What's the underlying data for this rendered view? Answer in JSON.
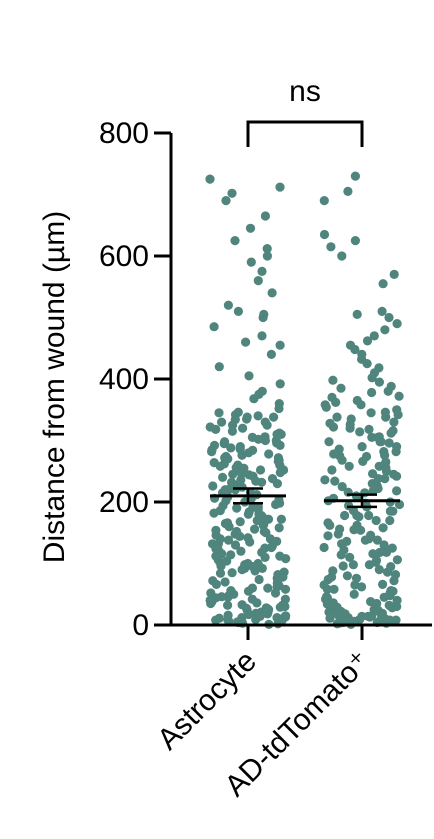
{
  "chart_data": {
    "type": "scatter",
    "ylabel": "Distance from wound (µm)",
    "xlabel": "",
    "ylim": [
      0,
      800
    ],
    "yticks": [
      0,
      200,
      400,
      600,
      800
    ],
    "categories": [
      "Astrocyte",
      "AD-tdTomato⁺"
    ],
    "dot_color": "#4f857d",
    "series": [
      {
        "category": "Astrocyte",
        "mean": 210,
        "sem": 12,
        "values": [
          725,
          712,
          702,
          690,
          665,
          645,
          625,
          612,
          600,
          590,
          575,
          560,
          540,
          520,
          510,
          505,
          500,
          485,
          470,
          460,
          455,
          440,
          420,
          405,
          392,
          380,
          375,
          368,
          360,
          352,
          346,
          342,
          338,
          334,
          330,
          325,
          320,
          315,
          310,
          305,
          300,
          296,
          292,
          288,
          284,
          280,
          276,
          272,
          268,
          264,
          260,
          256,
          252,
          248,
          244,
          240,
          236,
          232,
          228,
          224,
          220,
          216,
          212,
          208,
          204,
          200,
          196,
          192,
          188,
          184,
          180,
          176,
          172,
          168,
          164,
          160,
          156,
          152,
          148,
          144,
          140,
          136,
          132,
          128,
          124,
          120,
          116,
          112,
          108,
          104,
          100,
          96,
          92,
          88,
          84,
          80,
          76,
          72,
          68,
          64,
          60,
          56,
          52,
          48,
          44,
          40,
          36,
          32,
          28,
          24,
          20,
          16,
          12,
          8,
          4,
          2,
          345,
          338,
          322,
          312,
          302,
          292,
          282,
          272,
          262,
          252,
          242,
          232,
          222,
          212,
          202,
          192,
          182,
          172,
          162,
          152,
          142,
          132,
          122,
          112,
          102,
          92,
          82,
          72,
          62,
          52,
          42,
          32,
          22,
          12,
          6,
          330,
          310,
          290,
          270,
          250,
          230,
          210,
          190,
          170,
          150,
          130,
          110,
          90,
          70,
          50,
          30,
          15,
          340,
          300,
          260,
          220,
          180,
          140,
          100,
          60,
          25,
          10,
          335,
          295,
          255,
          215,
          175,
          135,
          95,
          55,
          18,
          5,
          325,
          285,
          245,
          205,
          165,
          125,
          85,
          45,
          14,
          3,
          318,
          278,
          238,
          198,
          158,
          118,
          78,
          38,
          26,
          9,
          306,
          266,
          226,
          186,
          146,
          106,
          66,
          35,
          19,
          7,
          298,
          258,
          218,
          178,
          138,
          98,
          58,
          33,
          21,
          1,
          286,
          246,
          206,
          166,
          126,
          86,
          46,
          29,
          17,
          11,
          274,
          234,
          194,
          154,
          114,
          74,
          42,
          27,
          13,
          8
        ]
      },
      {
        "category": "AD-tdTomato⁺",
        "mean": 202,
        "sem": 10,
        "values": [
          730,
          705,
          690,
          635,
          625,
          615,
          600,
          570,
          555,
          510,
          505,
          500,
          490,
          480,
          470,
          462,
          455,
          448,
          440,
          432,
          425,
          418,
          410,
          402,
          395,
          388,
          380,
          372,
          365,
          358,
          350,
          342,
          335,
          328,
          320,
          312,
          305,
          298,
          290,
          282,
          275,
          268,
          260,
          252,
          245,
          238,
          230,
          222,
          215,
          208,
          200,
          192,
          185,
          178,
          170,
          162,
          155,
          148,
          140,
          132,
          125,
          118,
          110,
          102,
          95,
          88,
          80,
          72,
          65,
          58,
          50,
          42,
          35,
          28,
          20,
          12,
          8,
          4,
          2,
          398,
          378,
          358,
          338,
          318,
          298,
          278,
          258,
          238,
          218,
          198,
          178,
          158,
          138,
          118,
          98,
          78,
          58,
          38,
          22,
          14,
          6,
          385,
          345,
          305,
          265,
          225,
          185,
          145,
          105,
          65,
          45,
          25,
          10,
          370,
          330,
          290,
          250,
          210,
          170,
          130,
          90,
          55,
          32,
          16,
          5,
          362,
          322,
          282,
          242,
          202,
          162,
          122,
          82,
          48,
          30,
          18,
          3,
          354,
          314,
          274,
          234,
          194,
          154,
          114,
          74,
          44,
          26,
          15,
          9,
          346,
          306,
          266,
          226,
          186,
          146,
          106,
          66,
          40,
          24,
          13,
          7,
          338,
          298,
          258,
          218,
          178,
          138,
          98,
          62,
          36,
          21,
          11,
          1,
          326,
          286,
          246,
          206,
          166,
          126,
          86,
          52,
          34,
          19,
          12,
          6,
          316,
          276,
          236,
          196,
          156,
          116,
          76,
          46,
          29,
          17,
          10,
          4,
          296,
          256,
          216,
          176,
          136,
          96,
          56,
          31,
          23,
          14,
          8,
          3
        ]
      }
    ],
    "significance": {
      "label": "ns",
      "between": [
        0,
        1
      ]
    }
  }
}
